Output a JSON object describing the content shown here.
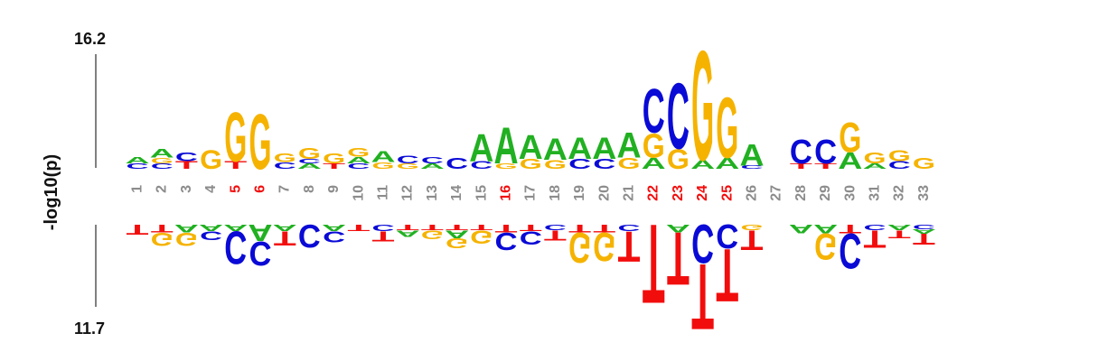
{
  "chart_data": {
    "type": "sequence-logo",
    "title": "",
    "ylabel": "-log10(p)",
    "ytop_label": "16.2",
    "ybottom_label": "11.7",
    "colors": {
      "A": "#21b021",
      "C": "#0a0ad6",
      "G": "#f5b300",
      "T": "#f20d0d",
      "pos_normal": "#8c8c8c",
      "pos_significant": "#f20d0d"
    },
    "positions": [
      {
        "label": "1",
        "significant": false,
        "up": [
          [
            "C",
            0.05
          ],
          [
            "A",
            0.06
          ]
        ],
        "down": [
          [
            "T",
            0.09
          ]
        ]
      },
      {
        "label": "2",
        "significant": false,
        "up": [
          [
            "C",
            0.05
          ],
          [
            "G",
            0.05
          ],
          [
            "A",
            0.08
          ]
        ],
        "down": [
          [
            "T",
            0.07
          ],
          [
            "G",
            0.12
          ]
        ]
      },
      {
        "label": "3",
        "significant": false,
        "up": [
          [
            "T",
            0.07
          ],
          [
            "C",
            0.08
          ]
        ],
        "down": [
          [
            "A",
            0.07
          ],
          [
            "G",
            0.12
          ]
        ]
      },
      {
        "label": "4",
        "significant": false,
        "up": [
          [
            "G",
            0.17
          ]
        ],
        "down": [
          [
            "A",
            0.06
          ],
          [
            "C",
            0.08
          ]
        ]
      },
      {
        "label": "5",
        "significant": true,
        "up": [
          [
            "T",
            0.07
          ],
          [
            "G",
            0.45
          ]
        ],
        "down": [
          [
            "A",
            0.06
          ],
          [
            "C",
            0.3
          ]
        ]
      },
      {
        "label": "6",
        "significant": true,
        "up": [
          [
            "G",
            0.5
          ]
        ],
        "down": [
          [
            "A",
            0.15
          ],
          [
            "C",
            0.22
          ]
        ]
      },
      {
        "label": "7",
        "significant": false,
        "up": [
          [
            "C",
            0.06
          ],
          [
            "G",
            0.08
          ]
        ],
        "down": [
          [
            "A",
            0.06
          ],
          [
            "T",
            0.13
          ]
        ]
      },
      {
        "label": "8",
        "significant": false,
        "up": [
          [
            "A",
            0.05
          ],
          [
            "C",
            0.04
          ],
          [
            "G",
            0.1
          ]
        ],
        "down": [
          [
            "C",
            0.21
          ]
        ]
      },
      {
        "label": "9",
        "significant": false,
        "up": [
          [
            "T",
            0.05
          ],
          [
            "G",
            0.09
          ]
        ],
        "down": [
          [
            "A",
            0.06
          ],
          [
            "C",
            0.1
          ]
        ]
      },
      {
        "label": "10",
        "significant": false,
        "up": [
          [
            "C",
            0.05
          ],
          [
            "A",
            0.06
          ],
          [
            "G",
            0.08
          ]
        ],
        "down": [
          [
            "T",
            0.06
          ]
        ]
      },
      {
        "label": "11",
        "significant": false,
        "up": [
          [
            "G",
            0.06
          ],
          [
            "A",
            0.1
          ]
        ],
        "down": [
          [
            "C",
            0.06
          ],
          [
            "T",
            0.09
          ]
        ]
      },
      {
        "label": "12",
        "significant": false,
        "up": [
          [
            "G",
            0.05
          ],
          [
            "C",
            0.07
          ]
        ],
        "down": [
          [
            "T",
            0.05
          ],
          [
            "A",
            0.06
          ]
        ]
      },
      {
        "label": "13",
        "significant": false,
        "up": [
          [
            "A",
            0.05
          ],
          [
            "C",
            0.06
          ]
        ],
        "down": [
          [
            "T",
            0.05
          ],
          [
            "G",
            0.08
          ]
        ]
      },
      {
        "label": "14",
        "significant": false,
        "up": [
          [
            "C",
            0.1
          ]
        ],
        "down": [
          [
            "T",
            0.05
          ],
          [
            "A",
            0.07
          ],
          [
            "G",
            0.09
          ]
        ]
      },
      {
        "label": "15",
        "significant": false,
        "up": [
          [
            "C",
            0.07
          ],
          [
            "A",
            0.25
          ]
        ],
        "down": [
          [
            "T",
            0.05
          ],
          [
            "G",
            0.12
          ]
        ]
      },
      {
        "label": "16",
        "significant": true,
        "up": [
          [
            "G",
            0.05
          ],
          [
            "A",
            0.33
          ]
        ],
        "down": [
          [
            "T",
            0.07
          ],
          [
            "C",
            0.16
          ]
        ]
      },
      {
        "label": "17",
        "significant": false,
        "up": [
          [
            "G",
            0.09
          ],
          [
            "A",
            0.22
          ]
        ],
        "down": [
          [
            "T",
            0.06
          ],
          [
            "C",
            0.12
          ]
        ]
      },
      {
        "label": "18",
        "significant": false,
        "up": [
          [
            "G",
            0.08
          ],
          [
            "A",
            0.2
          ]
        ],
        "down": [
          [
            "C",
            0.05
          ],
          [
            "T",
            0.09
          ]
        ]
      },
      {
        "label": "19",
        "significant": false,
        "up": [
          [
            "C",
            0.09
          ],
          [
            "A",
            0.2
          ]
        ],
        "down": [
          [
            "T",
            0.07
          ],
          [
            "G",
            0.28
          ]
        ]
      },
      {
        "label": "20",
        "significant": false,
        "up": [
          [
            "C",
            0.09
          ],
          [
            "A",
            0.2
          ]
        ],
        "down": [
          [
            "T",
            0.07
          ],
          [
            "G",
            0.26
          ]
        ]
      },
      {
        "label": "21",
        "significant": false,
        "up": [
          [
            "G",
            0.1
          ],
          [
            "A",
            0.23
          ]
        ],
        "down": [
          [
            "C",
            0.06
          ],
          [
            "T",
            0.28
          ]
        ]
      },
      {
        "label": "22",
        "significant": true,
        "up": [
          [
            "A",
            0.1
          ],
          [
            "G",
            0.22
          ],
          [
            "C",
            0.4
          ]
        ],
        "down": [
          [
            "T",
            0.72
          ]
        ]
      },
      {
        "label": "23",
        "significant": true,
        "up": [
          [
            "G",
            0.18
          ],
          [
            "C",
            0.6
          ]
        ],
        "down": [
          [
            "A",
            0.07
          ],
          [
            "T",
            0.48
          ]
        ]
      },
      {
        "label": "24",
        "significant": true,
        "up": [
          [
            "A",
            0.08
          ],
          [
            "G",
            1.0
          ]
        ],
        "down": [
          [
            "C",
            0.35
          ],
          [
            "T",
            0.6
          ]
        ]
      },
      {
        "label": "25",
        "significant": true,
        "up": [
          [
            "A",
            0.1
          ],
          [
            "G",
            0.55
          ]
        ],
        "down": [
          [
            "C",
            0.22
          ],
          [
            "T",
            0.48
          ]
        ]
      },
      {
        "label": "26",
        "significant": false,
        "up": [
          [
            "C",
            0.03
          ],
          [
            "A",
            0.2
          ]
        ],
        "down": [
          [
            "G",
            0.05
          ],
          [
            "T",
            0.18
          ]
        ]
      },
      {
        "label": "27",
        "significant": false,
        "up": [],
        "down": []
      },
      {
        "label": "28",
        "significant": false,
        "up": [
          [
            "T",
            0.05
          ],
          [
            "C",
            0.22
          ]
        ],
        "down": [
          [
            "A",
            0.08
          ]
        ]
      },
      {
        "label": "29",
        "significant": false,
        "up": [
          [
            "T",
            0.05
          ],
          [
            "C",
            0.22
          ]
        ],
        "down": [
          [
            "A",
            0.08
          ],
          [
            "G",
            0.24
          ]
        ]
      },
      {
        "label": "30",
        "significant": false,
        "up": [
          [
            "A",
            0.15
          ],
          [
            "G",
            0.27
          ]
        ],
        "down": [
          [
            "T",
            0.08
          ],
          [
            "C",
            0.32
          ]
        ]
      },
      {
        "label": "31",
        "significant": false,
        "up": [
          [
            "A",
            0.05
          ],
          [
            "G",
            0.1
          ]
        ],
        "down": [
          [
            "C",
            0.05
          ],
          [
            "T",
            0.16
          ]
        ]
      },
      {
        "label": "32",
        "significant": false,
        "up": [
          [
            "C",
            0.07
          ],
          [
            "G",
            0.1
          ]
        ],
        "down": [
          [
            "A",
            0.05
          ],
          [
            "T",
            0.07
          ]
        ]
      },
      {
        "label": "33",
        "significant": false,
        "up": [
          [
            "G",
            0.1
          ]
        ],
        "down": [
          [
            "C",
            0.04
          ],
          [
            "A",
            0.04
          ],
          [
            "T",
            0.1
          ]
        ]
      }
    ]
  }
}
